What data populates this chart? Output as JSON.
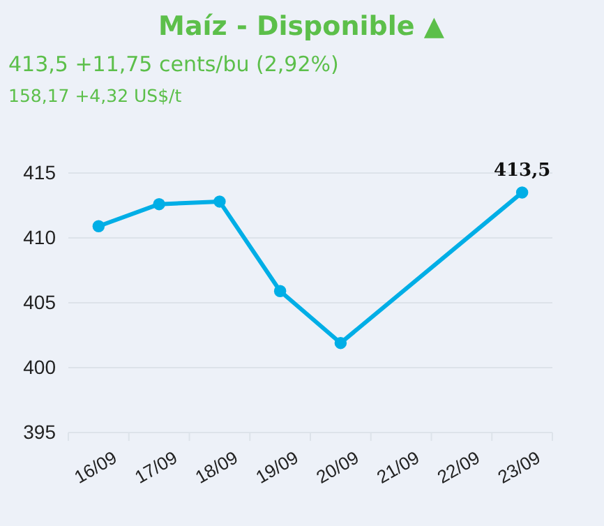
{
  "chart_data": {
    "type": "line",
    "title": "Maíz - Disponible ▲",
    "subtitle": "413,5 +11,75 cents/bu (2,92%)",
    "annotations": [
      "158,17 +4,32 US$/t"
    ],
    "categories": [
      "16/09",
      "17/09",
      "18/09",
      "19/09",
      "20/09",
      "21/09",
      "22/09",
      "23/09"
    ],
    "series": [
      {
        "color": "#00aee6",
        "values": [
          410.9,
          412.6,
          412.8,
          405.9,
          401.9,
          null,
          null,
          413.5
        ],
        "value_labels": [
          null,
          null,
          null,
          null,
          null,
          null,
          null,
          "413,5"
        ]
      }
    ],
    "ylim": [
      395,
      415
    ],
    "yticks": [
      395,
      400,
      405,
      410,
      415
    ],
    "grid": "y",
    "marker": "circle"
  }
}
